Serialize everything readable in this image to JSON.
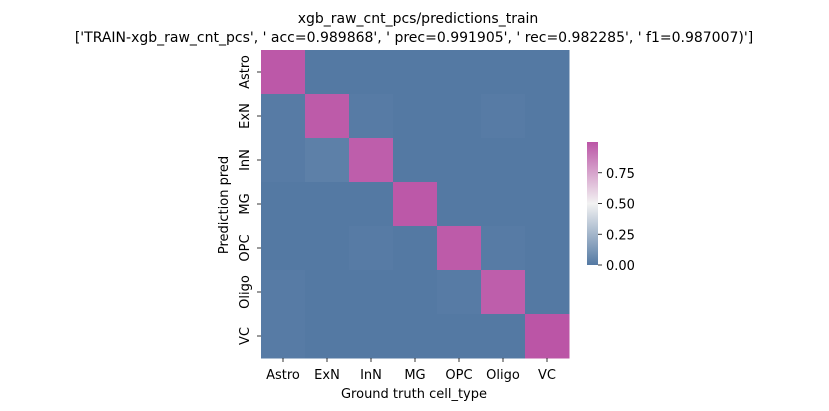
{
  "chart_data": {
    "type": "heatmap",
    "title": "xgb_raw_cnt_pcs/predictions_train",
    "subtitle": "['TRAIN-xgb_raw_cnt_pcs', ' acc=0.989868', '  prec=0.991905', ' rec=0.982285', ' f1=0.987007)']",
    "xlabel": "Ground truth cell_type",
    "ylabel": "Prediction pred",
    "x_categories": [
      "Astro",
      "ExN",
      "InN",
      "MG",
      "OPC",
      "Oligo",
      "VC"
    ],
    "y_categories": [
      "Astro",
      "ExN",
      "InN",
      "MG",
      "OPC",
      "Oligo",
      "VC"
    ],
    "values": [
      [
        0.99,
        0.0,
        0.0,
        0.0,
        0.0,
        0.0,
        0.0
      ],
      [
        0.01,
        0.98,
        0.01,
        0.0,
        0.0,
        0.01,
        0.0
      ],
      [
        0.01,
        0.03,
        0.97,
        0.0,
        0.0,
        0.0,
        0.0
      ],
      [
        0.0,
        0.0,
        0.0,
        0.99,
        0.0,
        0.0,
        0.0
      ],
      [
        0.0,
        0.0,
        0.01,
        0.0,
        0.98,
        0.01,
        0.0
      ],
      [
        0.01,
        0.0,
        0.0,
        0.0,
        0.01,
        0.97,
        0.0
      ],
      [
        0.01,
        0.0,
        0.0,
        0.0,
        0.0,
        0.0,
        1.0
      ]
    ],
    "colorbar": {
      "range": [
        0,
        1
      ],
      "ticks": [
        0.0,
        0.25,
        0.5,
        0.75
      ],
      "tick_labels": [
        "0.00",
        "0.25",
        "0.50",
        "0.75"
      ],
      "color_low": "#5479a3",
      "color_mid": "#f2f2f2",
      "color_high": "#bb55a6"
    }
  }
}
